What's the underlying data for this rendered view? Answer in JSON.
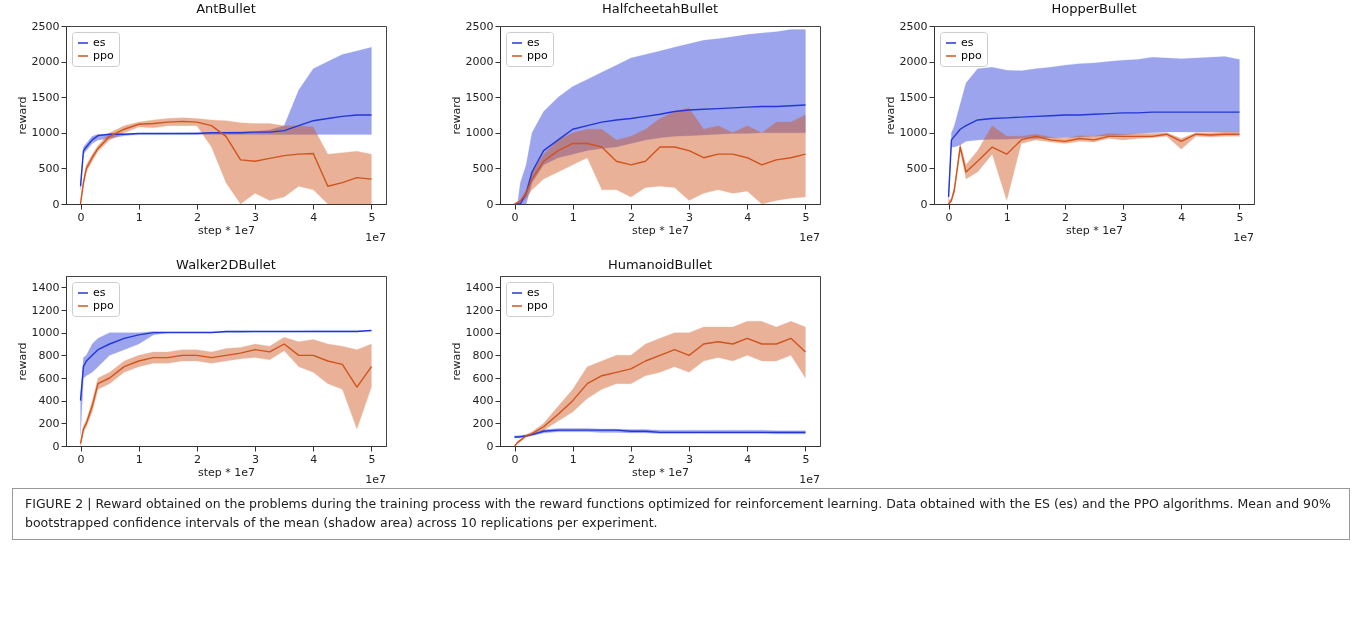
{
  "chart_data": [
    {
      "type": "line",
      "title": "AntBullet",
      "xlabel": "step * 1e7",
      "ylabel": "reward",
      "annotations": [
        "1e7",
        "FIGURE 2 | Reward obtained on the problems during the training process with the reward functions optimized for reinforcement learning. Data obtained with the ES (es) and the PPO algorithms. Mean and 90% bootstrapped confidence intervals of the mean (shadow area) across 10 replications per experiment."
      ],
      "x": [
        0,
        0.05,
        0.1,
        0.2,
        0.3,
        0.5,
        0.75,
        1,
        1.25,
        1.5,
        1.75,
        2,
        2.25,
        2.5,
        2.75,
        3,
        3.25,
        3.5,
        3.75,
        4,
        4.25,
        4.5,
        4.75,
        5
      ],
      "xlim": [
        -0.25,
        5.25
      ],
      "xticks": [
        0,
        1,
        2,
        3,
        4,
        5
      ],
      "ylim": [
        0,
        2500
      ],
      "yticks": [
        0,
        500,
        1000,
        1500,
        2000,
        2500
      ],
      "legend": "top left",
      "grid": false,
      "series": [
        {
          "name": "es",
          "color": "#2337d6",
          "values": [
            250,
            750,
            800,
            900,
            960,
            980,
            980,
            990,
            990,
            990,
            990,
            990,
            1000,
            1000,
            1000,
            1010,
            1010,
            1030,
            1100,
            1170,
            1200,
            1230,
            1250,
            1250
          ],
          "lower": [
            200,
            700,
            750,
            850,
            900,
            920,
            960,
            975,
            975,
            975,
            975,
            975,
            975,
            975,
            975,
            975,
            975,
            975,
            975,
            975,
            975,
            975,
            975,
            975
          ],
          "upper": [
            300,
            800,
            850,
            950,
            980,
            985,
            988,
            990,
            992,
            995,
            998,
            1000,
            1005,
            1010,
            1015,
            1020,
            1040,
            1100,
            1600,
            1900,
            2000,
            2100,
            2150,
            2200
          ]
        },
        {
          "name": "ppo",
          "color": "#d0541c",
          "values": [
            0,
            300,
            500,
            650,
            780,
            950,
            1050,
            1120,
            1130,
            1150,
            1160,
            1150,
            1100,
            950,
            620,
            600,
            640,
            680,
            700,
            710,
            250,
            300,
            370,
            350
          ],
          "lower": [
            0,
            250,
            450,
            600,
            740,
            900,
            1000,
            1080,
            1070,
            1100,
            1100,
            1100,
            800,
            300,
            0,
            150,
            50,
            100,
            250,
            200,
            0,
            0,
            0,
            0
          ],
          "upper": [
            50,
            350,
            550,
            700,
            820,
            1000,
            1100,
            1150,
            1180,
            1200,
            1210,
            1200,
            1180,
            1170,
            1140,
            1130,
            1130,
            1100,
            1100,
            1080,
            700,
            720,
            740,
            700
          ]
        }
      ]
    },
    {
      "type": "line",
      "title": "HalfcheetahBullet",
      "xlabel": "step * 1e7",
      "ylabel": "reward",
      "annotations": [
        "1e7"
      ],
      "x": [
        0,
        0.05,
        0.1,
        0.2,
        0.3,
        0.5,
        0.75,
        1,
        1.25,
        1.5,
        1.75,
        2,
        2.25,
        2.5,
        2.75,
        3,
        3.25,
        3.5,
        3.75,
        4,
        4.25,
        4.5,
        4.75,
        5
      ],
      "xlim": [
        -0.25,
        5.25
      ],
      "xticks": [
        0,
        1,
        2,
        3,
        4,
        5
      ],
      "ylim": [
        0,
        2500
      ],
      "yticks": [
        0,
        500,
        1000,
        1500,
        2000,
        2500
      ],
      "legend": "top left",
      "grid": false,
      "series": [
        {
          "name": "es",
          "color": "#2337d6",
          "values": [
            0,
            0,
            0,
            150,
            450,
            750,
            900,
            1050,
            1100,
            1150,
            1180,
            1200,
            1230,
            1260,
            1300,
            1320,
            1330,
            1340,
            1350,
            1360,
            1370,
            1370,
            1380,
            1390
          ],
          "lower": [
            0,
            0,
            0,
            0,
            300,
            550,
            650,
            700,
            750,
            780,
            800,
            850,
            900,
            930,
            950,
            960,
            970,
            980,
            990,
            990,
            1000,
            1000,
            1000,
            1000
          ],
          "upper": [
            0,
            0,
            300,
            550,
            1000,
            1300,
            1500,
            1650,
            1750,
            1850,
            1950,
            2050,
            2100,
            2150,
            2200,
            2250,
            2300,
            2320,
            2350,
            2380,
            2400,
            2420,
            2450,
            2450
          ]
        },
        {
          "name": "ppo",
          "color": "#d0541c",
          "values": [
            0,
            20,
            40,
            150,
            350,
            600,
            750,
            850,
            850,
            800,
            600,
            550,
            600,
            800,
            800,
            750,
            650,
            700,
            700,
            650,
            550,
            620,
            650,
            700
          ],
          "lower": [
            0,
            10,
            20,
            80,
            200,
            350,
            450,
            550,
            650,
            200,
            200,
            100,
            230,
            250,
            230,
            50,
            150,
            200,
            150,
            180,
            0,
            50,
            80,
            100
          ],
          "upper": [
            0,
            30,
            60,
            200,
            450,
            700,
            900,
            1000,
            1050,
            1050,
            900,
            950,
            1050,
            1200,
            1300,
            1350,
            1050,
            1100,
            1000,
            1100,
            1000,
            1150,
            1150,
            1250
          ]
        }
      ]
    },
    {
      "type": "line",
      "title": "HopperBullet",
      "xlabel": "step * 1e7",
      "ylabel": "reward",
      "annotations": [
        "1e7"
      ],
      "x": [
        0,
        0.05,
        0.1,
        0.2,
        0.3,
        0.5,
        0.75,
        1,
        1.25,
        1.5,
        1.75,
        2,
        2.25,
        2.5,
        2.75,
        3,
        3.25,
        3.5,
        3.75,
        4,
        4.25,
        4.5,
        4.75,
        5
      ],
      "xlim": [
        -0.25,
        5.25
      ],
      "xticks": [
        0,
        1,
        2,
        3,
        4,
        5
      ],
      "ylim": [
        0,
        2500
      ],
      "yticks": [
        0,
        500,
        1000,
        1500,
        2000,
        2500
      ],
      "legend": "top left",
      "grid": false,
      "series": [
        {
          "name": "es",
          "color": "#2337d6",
          "values": [
            100,
            900,
            950,
            1050,
            1100,
            1180,
            1200,
            1210,
            1220,
            1230,
            1240,
            1250,
            1250,
            1260,
            1270,
            1280,
            1280,
            1290,
            1290,
            1290,
            1290,
            1290,
            1290,
            1290
          ],
          "lower": [
            50,
            800,
            800,
            830,
            880,
            900,
            910,
            910,
            920,
            920,
            930,
            930,
            940,
            950,
            960,
            970,
            990,
            1000,
            1010,
            1010,
            1010,
            1010,
            1010,
            1010
          ],
          "upper": [
            150,
            1000,
            1100,
            1400,
            1700,
            1900,
            1920,
            1880,
            1870,
            1900,
            1920,
            1950,
            1970,
            1980,
            2000,
            2020,
            2030,
            2060,
            2050,
            2040,
            2050,
            2060,
            2070,
            2030
          ]
        },
        {
          "name": "ppo",
          "color": "#d0541c",
          "values": [
            0,
            50,
            200,
            800,
            450,
            600,
            800,
            700,
            900,
            950,
            900,
            880,
            920,
            900,
            950,
            950,
            950,
            950,
            980,
            880,
            980,
            970,
            980,
            980
          ],
          "lower": [
            0,
            30,
            150,
            750,
            350,
            450,
            700,
            50,
            850,
            900,
            870,
            850,
            880,
            870,
            920,
            900,
            920,
            930,
            950,
            770,
            950,
            940,
            950,
            950
          ],
          "upper": [
            50,
            80,
            250,
            850,
            550,
            750,
            1100,
            950,
            950,
            980,
            940,
            920,
            960,
            950,
            990,
            980,
            990,
            990,
            1000,
            920,
            1000,
            1000,
            1010,
            1010
          ]
        }
      ]
    },
    {
      "type": "line",
      "title": "Walker2DBullet",
      "xlabel": "step * 1e7",
      "ylabel": "reward",
      "annotations": [
        "1e7"
      ],
      "x": [
        0,
        0.05,
        0.1,
        0.2,
        0.3,
        0.5,
        0.75,
        1,
        1.25,
        1.5,
        1.75,
        2,
        2.25,
        2.5,
        2.75,
        3,
        3.25,
        3.5,
        3.75,
        4,
        4.25,
        4.5,
        4.75,
        5
      ],
      "xlim": [
        -0.25,
        5.25
      ],
      "xticks": [
        0,
        1,
        2,
        3,
        4,
        5
      ],
      "ylim": [
        0,
        1500
      ],
      "yticks": [
        0,
        200,
        400,
        600,
        800,
        1000,
        1200,
        1400
      ],
      "legend": "top left",
      "grid": false,
      "series": [
        {
          "name": "es",
          "color": "#2337d6",
          "values": [
            400,
            700,
            750,
            800,
            850,
            900,
            950,
            980,
            1000,
            1000,
            1000,
            1000,
            1000,
            1010,
            1010,
            1010,
            1010,
            1010,
            1010,
            1010,
            1010,
            1010,
            1010,
            1020
          ],
          "lower": [
            100,
            600,
            620,
            650,
            700,
            800,
            850,
            900,
            980,
            1000,
            1000,
            1000,
            1000,
            1002,
            1002,
            1005,
            1005,
            1005,
            1005,
            1007,
            1007,
            1007,
            1007,
            1010
          ],
          "upper": [
            450,
            780,
            800,
            900,
            950,
            1000,
            1000,
            1000,
            1010,
            1010,
            1010,
            1010,
            1010,
            1014,
            1014,
            1015,
            1015,
            1015,
            1015,
            1017,
            1017,
            1017,
            1017,
            1020
          ]
        },
        {
          "name": "ppo",
          "color": "#d0541c",
          "values": [
            20,
            150,
            200,
            350,
            550,
            600,
            700,
            750,
            780,
            780,
            800,
            800,
            780,
            800,
            820,
            850,
            830,
            900,
            800,
            800,
            750,
            720,
            520,
            700
          ],
          "lower": [
            0,
            120,
            170,
            300,
            500,
            550,
            650,
            700,
            730,
            730,
            750,
            750,
            730,
            750,
            770,
            780,
            760,
            840,
            700,
            650,
            550,
            500,
            150,
            520
          ],
          "upper": [
            40,
            180,
            230,
            400,
            600,
            650,
            750,
            800,
            830,
            830,
            850,
            850,
            830,
            860,
            870,
            900,
            880,
            960,
            920,
            940,
            900,
            880,
            850,
            900
          ]
        }
      ]
    },
    {
      "type": "line",
      "title": "HumanoidBullet",
      "xlabel": "step * 1e7",
      "ylabel": "reward",
      "annotations": [
        "1e7"
      ],
      "x": [
        0,
        0.05,
        0.1,
        0.2,
        0.3,
        0.5,
        0.75,
        1,
        1.25,
        1.5,
        1.75,
        2,
        2.25,
        2.5,
        2.75,
        3,
        3.25,
        3.5,
        3.75,
        4,
        4.25,
        4.5,
        4.75,
        5
      ],
      "xlim": [
        -0.25,
        5.25
      ],
      "xticks": [
        0,
        1,
        2,
        3,
        4,
        5
      ],
      "ylim": [
        0,
        1500
      ],
      "yticks": [
        0,
        200,
        400,
        600,
        800,
        1000,
        1200,
        1400
      ],
      "legend": "top left",
      "grid": false,
      "series": [
        {
          "name": "es",
          "color": "#2337d6",
          "values": [
            80,
            80,
            80,
            90,
            100,
            130,
            140,
            140,
            140,
            140,
            140,
            130,
            130,
            120,
            120,
            120,
            120,
            120,
            120,
            120,
            120,
            120,
            120,
            120
          ],
          "lower": [
            70,
            70,
            75,
            80,
            90,
            115,
            125,
            125,
            125,
            120,
            120,
            115,
            115,
            110,
            110,
            110,
            110,
            110,
            110,
            110,
            110,
            105,
            105,
            105
          ],
          "upper": [
            90,
            90,
            95,
            100,
            110,
            145,
            155,
            155,
            155,
            150,
            150,
            145,
            145,
            140,
            140,
            140,
            140,
            140,
            140,
            140,
            140,
            135,
            135,
            135
          ]
        },
        {
          "name": "ppo",
          "color": "#d0541c",
          "values": [
            0,
            30,
            50,
            90,
            110,
            170,
            280,
            400,
            550,
            620,
            650,
            680,
            750,
            800,
            850,
            800,
            900,
            920,
            900,
            950,
            900,
            900,
            950,
            830
          ],
          "lower": [
            0,
            20,
            40,
            80,
            95,
            140,
            220,
            300,
            420,
            500,
            550,
            550,
            620,
            650,
            700,
            650,
            750,
            780,
            750,
            800,
            750,
            750,
            800,
            600
          ],
          "upper": [
            0,
            40,
            60,
            100,
            125,
            200,
            350,
            500,
            700,
            750,
            800,
            800,
            900,
            950,
            1000,
            1000,
            1050,
            1050,
            1050,
            1100,
            1100,
            1050,
            1100,
            1050
          ]
        }
      ]
    }
  ]
}
